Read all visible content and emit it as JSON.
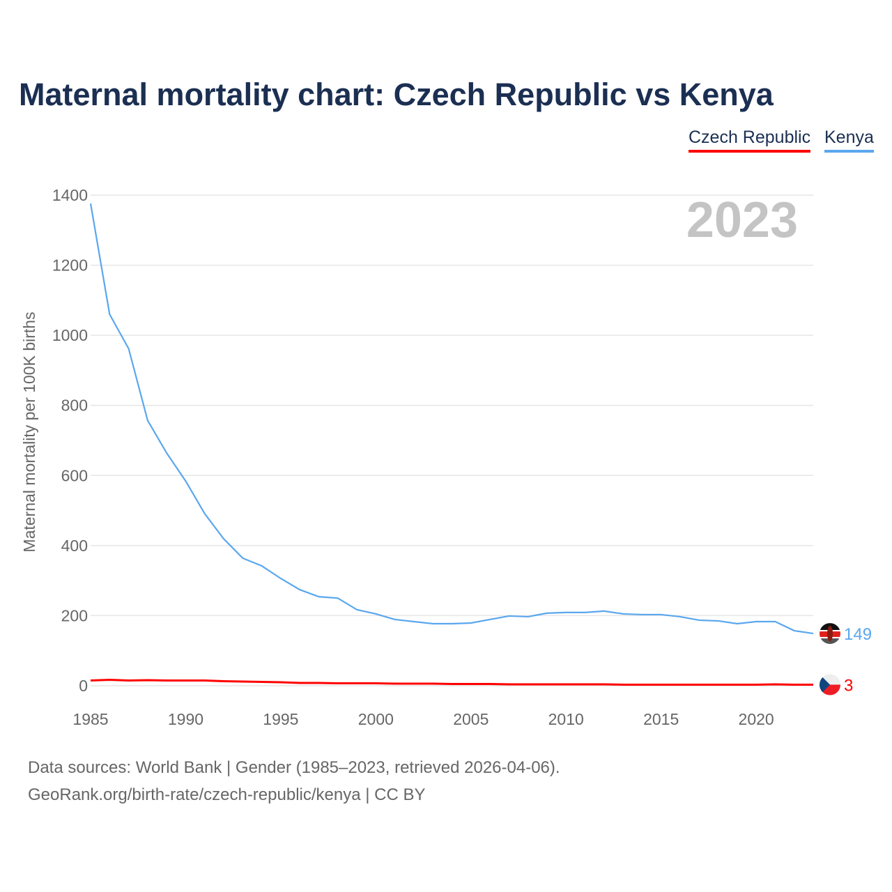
{
  "chart_data": {
    "type": "line",
    "title": "Maternal mortality chart: Czech Republic vs Kenya",
    "xlabel": "",
    "ylabel": "Maternal mortality per 100K births",
    "year_label": "2023",
    "xlim": [
      1985,
      2023
    ],
    "ylim": [
      0,
      1400
    ],
    "xticks": [
      1985,
      1990,
      1995,
      2000,
      2005,
      2010,
      2015,
      2020
    ],
    "yticks": [
      0,
      200,
      400,
      600,
      800,
      1000,
      1200,
      1400
    ],
    "grid": true,
    "legend_position": "top-right",
    "x": [
      1985,
      1986,
      1987,
      1988,
      1989,
      1990,
      1991,
      1992,
      1993,
      1994,
      1995,
      1996,
      1997,
      1998,
      1999,
      2000,
      2001,
      2002,
      2003,
      2004,
      2005,
      2006,
      2007,
      2008,
      2009,
      2010,
      2011,
      2012,
      2013,
      2014,
      2015,
      2016,
      2017,
      2018,
      2019,
      2020,
      2021,
      2022,
      2023
    ],
    "series": [
      {
        "name": "Czech Republic",
        "color": "#ff0000",
        "end_label": "3",
        "values": [
          15,
          17,
          15,
          16,
          15,
          15,
          15,
          13,
          12,
          11,
          10,
          8,
          8,
          7,
          7,
          7,
          6,
          6,
          6,
          5,
          5,
          5,
          4,
          4,
          4,
          4,
          4,
          4,
          3,
          3,
          3,
          3,
          3,
          3,
          3,
          3,
          4,
          3,
          3
        ]
      },
      {
        "name": "Kenya",
        "color": "#5aa7ee",
        "end_label": "149",
        "values": [
          1376,
          1060,
          962,
          757,
          664,
          584,
          491,
          419,
          364,
          342,
          306,
          274,
          254,
          250,
          217,
          205,
          189,
          183,
          177,
          177,
          179,
          189,
          199,
          197,
          207,
          209,
          209,
          213,
          205,
          203,
          203,
          197,
          187,
          185,
          177,
          183,
          183,
          157,
          149
        ]
      }
    ]
  },
  "footer": {
    "line1": "Data sources: World Bank | Gender (1985–2023, retrieved 2026-04-06).",
    "line2": "GeoRank.org/birth-rate/czech-republic/kenya | CC BY"
  }
}
